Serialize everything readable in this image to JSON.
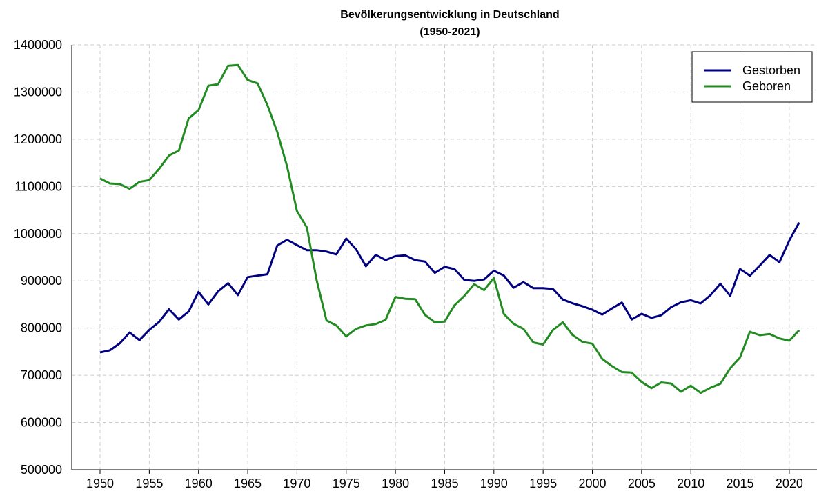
{
  "chart_data": {
    "type": "line",
    "title": "Bevölkerungsentwicklung in Deutschland",
    "subtitle": "(1950-2021)",
    "xlabel": "",
    "ylabel": "",
    "xlim": [
      1950,
      2021
    ],
    "ylim": [
      500000,
      1400000
    ],
    "xticks": [
      1950,
      1955,
      1960,
      1965,
      1970,
      1975,
      1980,
      1985,
      1990,
      1995,
      2000,
      2005,
      2010,
      2015,
      2020
    ],
    "yticks": [
      500000,
      600000,
      700000,
      800000,
      900000,
      1000000,
      1100000,
      1200000,
      1300000,
      1400000
    ],
    "grid": true,
    "legend_position": "top-right",
    "x": [
      1950,
      1951,
      1952,
      1953,
      1954,
      1955,
      1956,
      1957,
      1958,
      1959,
      1960,
      1961,
      1962,
      1963,
      1964,
      1965,
      1966,
      1967,
      1968,
      1969,
      1970,
      1971,
      1972,
      1973,
      1974,
      1975,
      1976,
      1977,
      1978,
      1979,
      1980,
      1981,
      1982,
      1983,
      1984,
      1985,
      1986,
      1987,
      1988,
      1989,
      1990,
      1991,
      1992,
      1993,
      1994,
      1995,
      1996,
      1997,
      1998,
      1999,
      2000,
      2001,
      2002,
      2003,
      2004,
      2005,
      2006,
      2007,
      2008,
      2009,
      2010,
      2011,
      2012,
      2013,
      2014,
      2015,
      2016,
      2017,
      2018,
      2019,
      2020,
      2021
    ],
    "series": [
      {
        "name": "Gestorben",
        "color": "#000080",
        "values": [
          748329,
          752920,
          767500,
          790540,
          774350,
          796000,
          813130,
          839840,
          818130,
          835000,
          876721,
          850000,
          878000,
          895000,
          870000,
          907882,
          911000,
          914000,
          975000,
          987000,
          975664,
          965000,
          965000,
          962000,
          956000,
          989648,
          967000,
          931000,
          955000,
          944000,
          952371,
          954000,
          944000,
          941000,
          917000,
          929649,
          925000,
          902000,
          900000,
          903000,
          921445,
          911245,
          885443,
          897270,
          884661,
          884588,
          882843,
          860389,
          852382,
          846330,
          838797,
          828541,
          841686,
          853946,
          818271,
          830227,
          821627,
          827155,
          844439,
          854544,
          858768,
          852328,
          869582,
          893825,
          868356,
          925200,
          910899,
          932272,
          954874,
          939520,
          985572,
          1023687
        ]
      },
      {
        "name": "Geboren",
        "color": "#228b22",
        "values": [
          1116701,
          1106380,
          1105084,
          1095029,
          1109743,
          1113408,
          1137169,
          1165555,
          1175870,
          1243922,
          1261614,
          1313505,
          1316534,
          1355595,
          1357304,
          1325386,
          1318303,
          1272276,
          1214968,
          1142366,
          1047737,
          1013396,
          901657,
          815969,
          805500,
          782310,
          798334,
          805496,
          808619,
          817217,
          865789,
          862100,
          861275,
          827933,
          812292,
          813803,
          848232,
          867969,
          892993,
          880459,
          905675,
          830019,
          809114,
          798447,
          769603,
          765221,
          796013,
          812173,
          785034,
          770744,
          766999,
          734475,
          719250,
          706721,
          705622,
          685795,
          672724,
          684862,
          682514,
          665126,
          677947,
          662685,
          673544,
          682069,
          714927,
          737575,
          792141,
          784901,
          787523,
          778090,
          773144,
          795492
        ]
      }
    ]
  }
}
